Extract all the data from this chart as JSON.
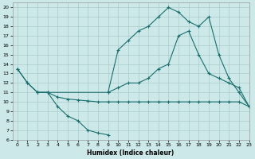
{
  "xlabel": "Humidex (Indice chaleur)",
  "bg_color": "#cce8e8",
  "grid_color": "#aacccc",
  "line_color": "#1a6e6e",
  "xlim": [
    -0.5,
    23
  ],
  "ylim": [
    6,
    20.5
  ],
  "xticks": [
    0,
    1,
    2,
    3,
    4,
    5,
    6,
    7,
    8,
    9,
    10,
    11,
    12,
    13,
    14,
    15,
    16,
    17,
    18,
    19,
    20,
    21,
    22,
    23
  ],
  "yticks": [
    6,
    7,
    8,
    9,
    10,
    11,
    12,
    13,
    14,
    15,
    16,
    17,
    18,
    19,
    20
  ],
  "line_a_x": [
    0,
    1,
    2,
    3,
    4,
    5,
    6,
    7,
    8,
    9
  ],
  "line_a_y": [
    13.5,
    12.0,
    11.0,
    11.0,
    9.5,
    8.5,
    8.0,
    7.0,
    6.7,
    6.5
  ],
  "line_b_x": [
    2,
    3,
    4,
    5,
    6,
    7,
    8,
    9,
    10,
    11,
    12,
    13,
    14,
    15,
    16,
    17,
    18,
    19,
    20,
    21,
    22,
    23
  ],
  "line_b_y": [
    11.0,
    11.0,
    10.5,
    10.3,
    10.2,
    10.1,
    10.0,
    10.0,
    10.0,
    10.0,
    10.0,
    10.0,
    10.0,
    10.0,
    10.0,
    10.0,
    10.0,
    10.0,
    10.0,
    10.0,
    10.0,
    9.5
  ],
  "line_c_x": [
    0,
    1,
    2,
    3,
    9,
    10,
    11,
    12,
    13,
    14,
    15,
    16,
    17,
    18,
    19,
    20,
    21,
    22,
    23
  ],
  "line_c_y": [
    13.5,
    12.0,
    11.0,
    11.0,
    11.0,
    11.5,
    12.0,
    12.0,
    12.5,
    13.5,
    14.0,
    17.0,
    17.5,
    15.0,
    13.0,
    12.5,
    12.0,
    11.5,
    9.5
  ],
  "line_d_x": [
    9,
    10,
    11,
    12,
    13,
    14,
    15,
    16,
    17,
    18,
    19,
    20,
    21,
    22,
    23
  ],
  "line_d_y": [
    11.0,
    15.5,
    16.5,
    17.5,
    18.0,
    19.0,
    20.0,
    19.5,
    18.5,
    18.0,
    19.0,
    15.0,
    12.5,
    11.0,
    9.5
  ]
}
